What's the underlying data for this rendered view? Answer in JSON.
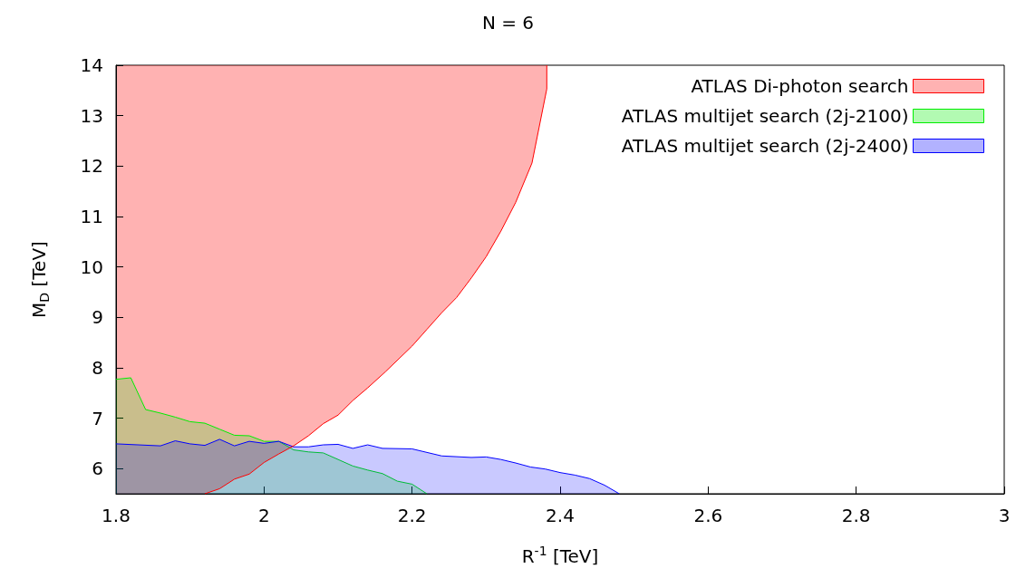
{
  "chart_data": {
    "type": "area",
    "title": "N = 6",
    "xlabel": "R$^{-1}$ [TeV]",
    "ylabel": "M$_{D}$ [TeV]",
    "xlim": [
      1.8,
      3
    ],
    "xticks": [
      1.8,
      2,
      2.2,
      2.4,
      2.6,
      2.8,
      3
    ],
    "ylim": [
      5.5,
      14
    ],
    "yticks": [
      6,
      7,
      8,
      9,
      10,
      11,
      12,
      13,
      14
    ],
    "grid": false,
    "legend": "top right",
    "marker": "none",
    "line_style": "solid",
    "series": [
      {
        "name": "ATLAS Di-photon search",
        "type": "line",
        "color": "#ff0000",
        "x": [
          1.8,
          1.92,
          1.94,
          1.96,
          1.98,
          2.0,
          2.02,
          2.04,
          2.06,
          2.08,
          2.1,
          2.12,
          2.14,
          2.164,
          2.2,
          2.22,
          2.24,
          2.26,
          2.28,
          2.3,
          2.32,
          2.34,
          2.362,
          2.382,
          2.382
        ],
        "values": [
          null,
          5.5,
          5.6,
          5.79,
          5.89,
          6.12,
          6.29,
          6.45,
          6.65,
          6.89,
          7.06,
          7.35,
          7.6,
          7.92,
          8.43,
          8.76,
          9.09,
          9.39,
          9.78,
          10.2,
          10.71,
          11.28,
          12.06,
          13.53,
          14
        ],
        "lower": [
          5.5,
          5.5,
          5.6,
          5.79,
          5.89,
          6.12,
          6.29,
          6.45,
          6.65,
          6.89,
          7.06,
          7.35,
          7.6,
          7.92,
          8.43,
          8.76,
          9.09,
          9.39,
          9.78,
          10.2,
          10.71,
          11.28,
          12.06,
          13.53,
          14
        ],
        "upper": [
          14,
          14,
          14,
          14,
          14,
          14,
          14,
          14,
          14,
          14,
          14,
          14,
          14,
          14,
          14,
          14,
          14,
          14,
          14,
          14,
          14,
          14,
          14,
          14,
          14
        ]
      },
      {
        "name": "ATLAS multijet search (2j-2100)",
        "color": "#00ee00",
        "x": [
          1.8,
          1.82,
          1.84,
          1.86,
          1.88,
          1.9,
          1.92,
          1.94,
          1.96,
          1.98,
          2.0,
          2.02,
          2.04,
          2.06,
          2.08,
          2.1,
          2.12,
          2.14,
          2.16,
          2.18,
          2.2,
          2.22
        ],
        "values": [
          7.77,
          7.8,
          7.17,
          7.1,
          7.02,
          6.93,
          6.9,
          6.78,
          6.66,
          6.65,
          6.54,
          6.54,
          6.37,
          6.33,
          6.31,
          6.18,
          6.05,
          5.97,
          5.9,
          5.75,
          5.69,
          5.5
        ]
      },
      {
        "name": "ATLAS multijet search (2j-2400)",
        "color": "#0000ff",
        "x": [
          1.8,
          1.86,
          1.88,
          1.9,
          1.92,
          1.94,
          1.96,
          1.98,
          2.0,
          2.02,
          2.04,
          2.06,
          2.08,
          2.1,
          2.12,
          2.14,
          2.16,
          2.2,
          2.24,
          2.28,
          2.3,
          2.32,
          2.34,
          2.36,
          2.38,
          2.4,
          2.42,
          2.44,
          2.46,
          2.48
        ],
        "values": [
          6.49,
          6.45,
          6.55,
          6.49,
          6.46,
          6.58,
          6.45,
          6.54,
          6.5,
          6.54,
          6.43,
          6.43,
          6.47,
          6.48,
          6.4,
          6.47,
          6.4,
          6.39,
          6.25,
          6.22,
          6.23,
          6.18,
          6.11,
          6.03,
          5.99,
          5.92,
          5.87,
          5.8,
          5.67,
          5.5
        ]
      }
    ]
  }
}
